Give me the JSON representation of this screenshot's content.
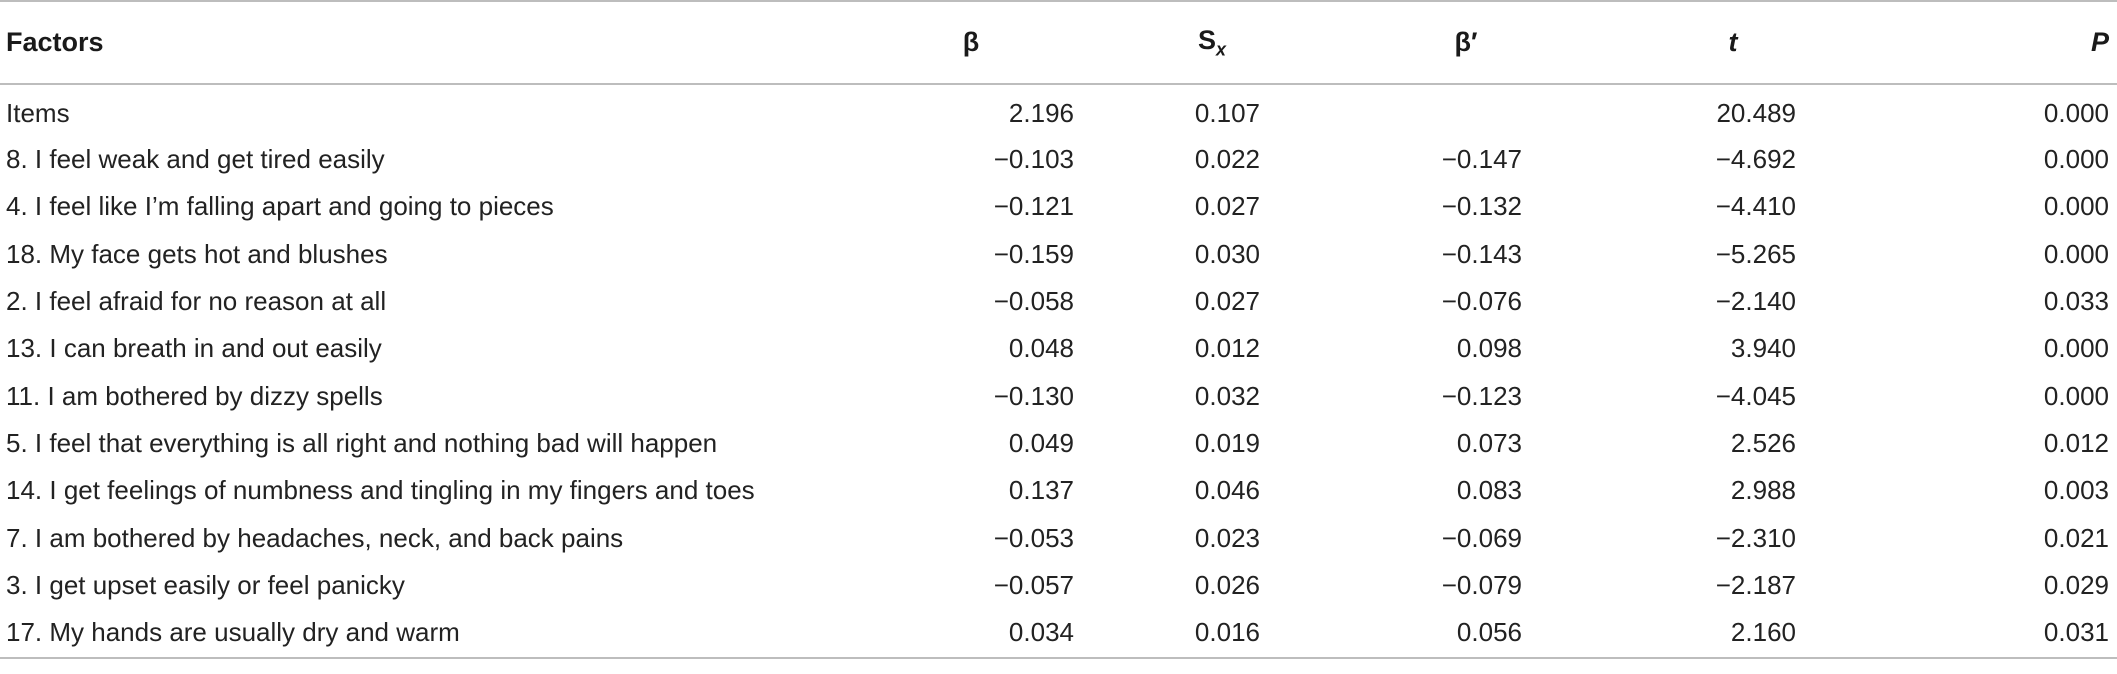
{
  "table": {
    "headers": {
      "factors": "Factors",
      "beta": "β",
      "sx_main": "S",
      "sx_sub": "x",
      "beta_prime": "β′",
      "t": "t",
      "p": "P"
    },
    "rows": [
      {
        "factor": "Items",
        "beta": "2.196",
        "sx": "0.107",
        "beta_prime": "",
        "t": "20.489",
        "p": "0.000"
      },
      {
        "factor": "8. I feel weak and get tired easily",
        "beta": "−0.103",
        "sx": "0.022",
        "beta_prime": "−0.147",
        "t": "−4.692",
        "p": "0.000"
      },
      {
        "factor": "4. I feel like I’m falling apart and going to pieces",
        "beta": "−0.121",
        "sx": "0.027",
        "beta_prime": "−0.132",
        "t": "−4.410",
        "p": "0.000"
      },
      {
        "factor": "18. My face gets hot and blushes",
        "beta": "−0.159",
        "sx": "0.030",
        "beta_prime": "−0.143",
        "t": "−5.265",
        "p": "0.000"
      },
      {
        "factor": "2. I feel afraid for no reason at all",
        "beta": "−0.058",
        "sx": "0.027",
        "beta_prime": "−0.076",
        "t": "−2.140",
        "p": "0.033"
      },
      {
        "factor": "13. I can breath in and out easily",
        "beta": "0.048",
        "sx": "0.012",
        "beta_prime": "0.098",
        "t": "3.940",
        "p": "0.000"
      },
      {
        "factor": "11. I am bothered by dizzy spells",
        "beta": "−0.130",
        "sx": "0.032",
        "beta_prime": "−0.123",
        "t": "−4.045",
        "p": "0.000"
      },
      {
        "factor": "5. I feel that everything is all right and nothing bad will happen",
        "beta": "0.049",
        "sx": "0.019",
        "beta_prime": "0.073",
        "t": "2.526",
        "p": "0.012"
      },
      {
        "factor": "14. I get feelings of numbness and tingling in my fingers and toes",
        "beta": "0.137",
        "sx": "0.046",
        "beta_prime": "0.083",
        "t": "2.988",
        "p": "0.003"
      },
      {
        "factor": "7. I am bothered by headaches, neck, and back pains",
        "beta": "−0.053",
        "sx": "0.023",
        "beta_prime": "−0.069",
        "t": "−2.310",
        "p": "0.021"
      },
      {
        "factor": "3. I get upset easily or feel panicky",
        "beta": "−0.057",
        "sx": "0.026",
        "beta_prime": "−0.079",
        "t": "−2.187",
        "p": "0.029"
      },
      {
        "factor": "17. My hands are usually dry and warm",
        "beta": "0.034",
        "sx": "0.016",
        "beta_prime": "0.056",
        "t": "2.160",
        "p": "0.031"
      }
    ]
  }
}
